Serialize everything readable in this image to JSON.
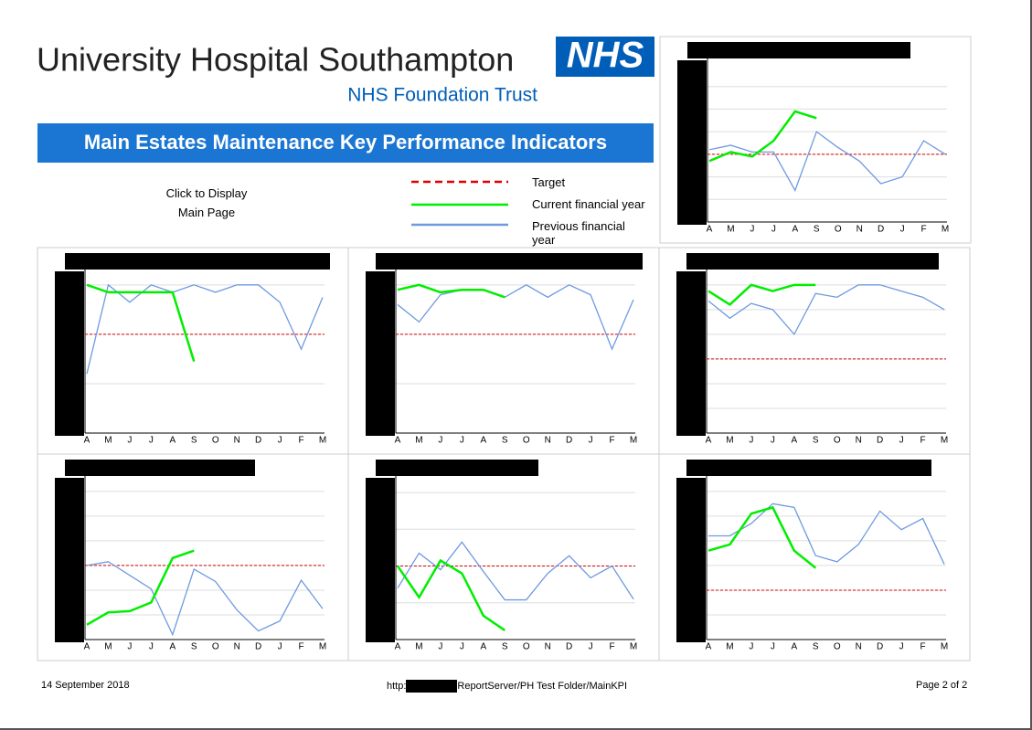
{
  "header": {
    "organisation": "University Hospital Southampton",
    "logo": "NHS",
    "trust": "NHS Foundation Trust",
    "banner": "Main Estates Maintenance Key Performance Indicators"
  },
  "link": "Click to Display Main Page",
  "legend": {
    "target": {
      "label": "Target",
      "color": "#e00000"
    },
    "current": {
      "label": "Current financial year",
      "color": "#00ee00"
    },
    "previous": {
      "label": "Previous financial year",
      "color": "#6f9ae0"
    }
  },
  "chart_data": [
    {
      "type": "line",
      "categories": [
        "A",
        "M",
        "J",
        "J",
        "A",
        "S",
        "O",
        "N",
        "D",
        "J",
        "F",
        "M"
      ],
      "ylim": [
        0,
        7
      ],
      "yticks": [
        1,
        2,
        3,
        4,
        5,
        6
      ],
      "grid": true,
      "target": 3,
      "current": [
        2.7,
        3.1,
        2.9,
        3.6,
        4.9,
        4.6
      ],
      "previous": [
        3.2,
        3.4,
        3.1,
        3.1,
        1.4,
        4.0,
        3.3,
        2.7,
        1.7,
        2.0,
        3.6,
        3.0
      ]
    },
    {
      "type": "line",
      "categories": [
        "A",
        "M",
        "J",
        "J",
        "A",
        "S",
        "O",
        "N",
        "D",
        "J",
        "F",
        "M"
      ],
      "ylim": [
        0,
        3.2
      ],
      "yticks": [
        1,
        2,
        3
      ],
      "grid": true,
      "target": 2,
      "current": [
        3.0,
        2.85,
        2.85,
        2.85,
        2.85,
        1.45
      ],
      "previous": [
        1.2,
        3.0,
        2.65,
        3.0,
        2.85,
        3.0,
        2.85,
        3.0,
        3.0,
        2.65,
        1.7,
        2.75
      ]
    },
    {
      "type": "line",
      "categories": [
        "A",
        "M",
        "J",
        "J",
        "A",
        "S",
        "O",
        "N",
        "D",
        "J",
        "F",
        "M"
      ],
      "ylim": [
        0,
        3.2
      ],
      "yticks": [
        1,
        2,
        3
      ],
      "grid": true,
      "target": 2,
      "current": [
        2.9,
        3.0,
        2.85,
        2.9,
        2.9,
        2.75
      ],
      "previous": [
        2.6,
        2.25,
        2.8,
        2.9,
        2.9,
        2.75,
        3.0,
        2.75,
        3.0,
        2.8,
        1.7,
        2.7
      ]
    },
    {
      "type": "line",
      "categories": [
        "A",
        "M",
        "J",
        "J",
        "A",
        "S",
        "O",
        "N",
        "D",
        "J",
        "F",
        "M"
      ],
      "ylim": [
        0,
        6.4
      ],
      "yticks": [
        1,
        2,
        3,
        4,
        5,
        6
      ],
      "grid": true,
      "target": 3,
      "current": [
        5.75,
        5.2,
        6.0,
        5.75,
        6.0,
        6.0
      ],
      "previous": [
        5.35,
        4.65,
        5.25,
        5.0,
        4.0,
        5.65,
        5.5,
        6.0,
        6.0,
        5.75,
        5.5,
        5.0
      ]
    },
    {
      "type": "line",
      "categories": [
        "A",
        "M",
        "J",
        "J",
        "A",
        "S",
        "O",
        "N",
        "D",
        "J",
        "F",
        "M"
      ],
      "ylim": [
        0,
        6.4
      ],
      "yticks": [
        1,
        2,
        3,
        4,
        5,
        6
      ],
      "grid": true,
      "target": 3,
      "current": [
        0.6,
        1.1,
        1.15,
        1.5,
        3.3,
        3.6
      ],
      "previous": [
        3.0,
        3.15,
        2.6,
        2.05,
        0.2,
        2.85,
        2.35,
        1.2,
        0.35,
        0.75,
        2.4,
        1.25
      ]
    },
    {
      "type": "line",
      "categories": [
        "A",
        "M",
        "J",
        "J",
        "A",
        "S",
        "O",
        "N",
        "D",
        "J",
        "F",
        "M"
      ],
      "ylim": [
        0,
        4.3
      ],
      "yticks": [
        1,
        2,
        3,
        4
      ],
      "grid": true,
      "target": 2,
      "current": [
        2.0,
        1.15,
        2.15,
        1.8,
        0.65,
        0.25
      ],
      "previous": [
        1.4,
        2.35,
        1.9,
        2.65,
        1.85,
        1.08,
        1.08,
        1.8,
        2.28,
        1.68,
        2.0,
        1.1
      ]
    },
    {
      "type": "line",
      "categories": [
        "A",
        "M",
        "J",
        "J",
        "A",
        "S",
        "O",
        "N",
        "D",
        "J",
        "F",
        "M"
      ],
      "ylim": [
        0,
        6.4
      ],
      "yticks": [
        1,
        2,
        3,
        4,
        5,
        6
      ],
      "grid": true,
      "target": 2,
      "current": [
        3.6,
        3.85,
        5.1,
        5.35,
        3.6,
        2.9
      ],
      "previous": [
        4.2,
        4.2,
        4.7,
        5.5,
        5.35,
        3.4,
        3.15,
        3.85,
        5.2,
        4.45,
        4.9,
        3.05
      ]
    }
  ],
  "footer": {
    "date": "14 September 2018",
    "url_prefix": "http:",
    "url_suffix": "ReportServer/PH Test Folder/MainKPI",
    "page": "Page 2 of 2"
  }
}
